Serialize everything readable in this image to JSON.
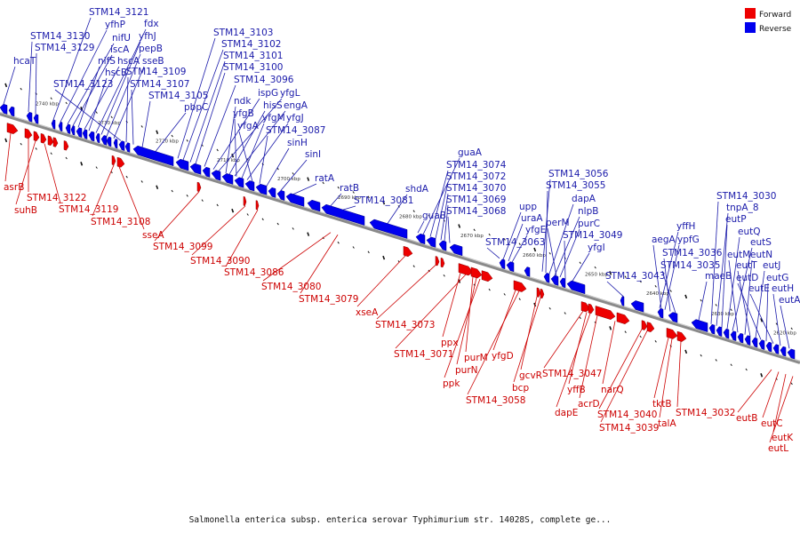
{
  "legend": [
    {
      "label": "Forward",
      "color": "#ee0000"
    },
    {
      "label": "Reverse",
      "color": "#0000ee"
    }
  ],
  "caption": "Salmonella enterica subsp. enterica serovar Typhimurium str. 14028S, complete ge...",
  "kbp_ticks": [
    "2740 kbp",
    "2730 kbp",
    "2720 kbp",
    "2710 kbp",
    "2700 kbp",
    "2690 kbp",
    "2680 kbp",
    "2670 kbp",
    "2660 kbp",
    "2650 kbp",
    "2640 kbp",
    "2630 kbp",
    "2620 kbp"
  ],
  "reverse_labels": [
    "hcaT",
    "STM14_3130",
    "STM14_3129",
    "STM14_3121",
    "yfhP",
    "nifU",
    "iscA",
    "nifS",
    "hscA",
    "hscB",
    "fdx",
    "yfhJ",
    "pepB",
    "sseB",
    "STM14_3123",
    "STM14_3109",
    "STM14_3107",
    "STM14_3105",
    "pbpC",
    "STM14_3103",
    "STM14_3102",
    "STM14_3101",
    "STM14_3100",
    "STM14_3096",
    "ispG",
    "yfgL",
    "ndk",
    "hisS",
    "engA",
    "yfgB",
    "yfgM",
    "yfgJ",
    "yfgA",
    "STM14_3087",
    "sinH",
    "sinI",
    "ratA",
    "ratB",
    "STM14_3081",
    "shdA",
    "guaA",
    "STM14_3074",
    "STM14_3072",
    "STM14_3070",
    "STM14_3069",
    "STM14_3068",
    "guaB",
    "upp",
    "uraA",
    "yfgE",
    "STM14_3063",
    "STM14_3056",
    "STM14_3055",
    "dapA",
    "nlpB",
    "purC",
    "perM",
    "STM14_3049",
    "yfgI",
    "STM14_3043",
    "yffH",
    "aegA",
    "ypfG",
    "STM14_3036",
    "STM14_3035",
    "maeB",
    "STM14_3030",
    "tnpA_8",
    "eutP",
    "eutQ",
    "eutS",
    "eutM",
    "eutN",
    "eutT",
    "eutJ",
    "eutD",
    "eutG",
    "eutE",
    "eutH",
    "eutA"
  ],
  "forward_labels": [
    "asrB",
    "STM14_3122",
    "suhB",
    "STM14_3119",
    "STM14_3108",
    "sseA",
    "STM14_3099",
    "STM14_3090",
    "STM14_3086",
    "STM14_3080",
    "STM14_3079",
    "xseA",
    "STM14_3073",
    "ppx",
    "STM14_3071",
    "purM",
    "purN",
    "ppk",
    "yfgD",
    "STM14_3058",
    "gcvR",
    "bcp",
    "STM14_3047",
    "yffB",
    "dapE",
    "acrD",
    "narQ",
    "STM14_3040",
    "STM14_3039",
    "tktB",
    "talA",
    "STM14_3032",
    "eutB",
    "eutC",
    "eutK",
    "eutL"
  ]
}
